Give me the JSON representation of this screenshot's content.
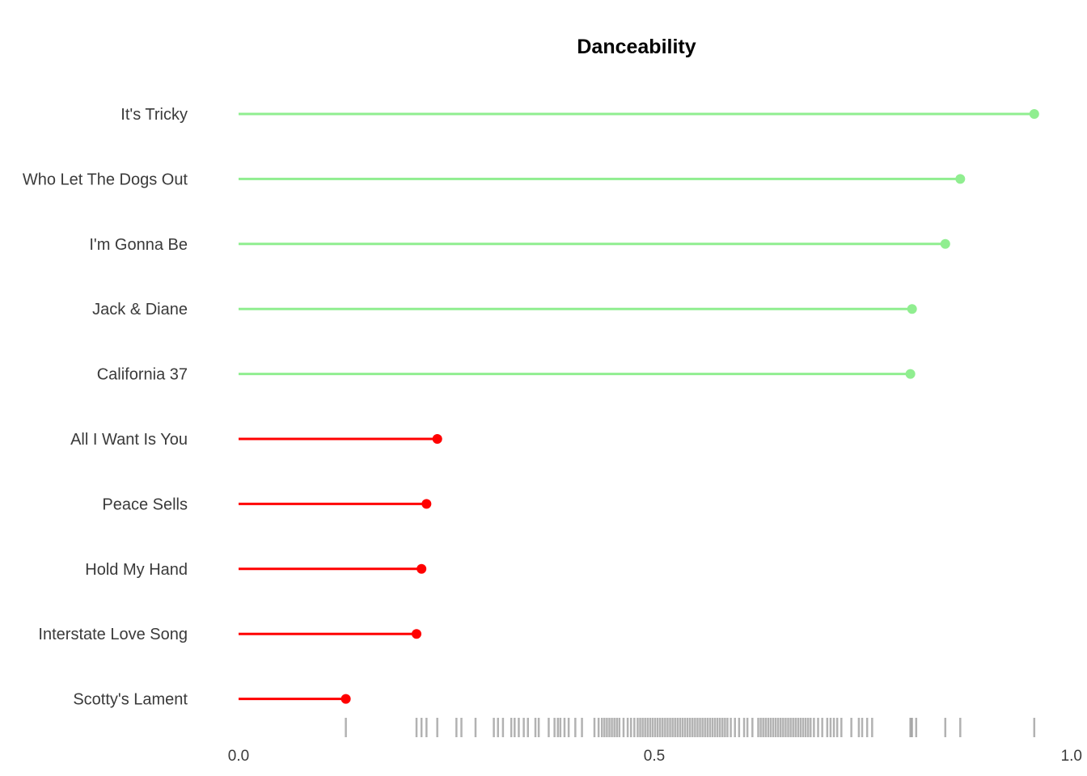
{
  "chart_data": {
    "type": "lollipop",
    "title": "Danceability",
    "xlabel": "",
    "ylabel": "",
    "xlim": [
      0.0,
      1.0
    ],
    "xticks": [
      0.0,
      0.5,
      1.0
    ],
    "xtick_labels": [
      "0.0",
      "0.5",
      "1.0"
    ],
    "grid": false,
    "colors": {
      "high": "#90EE90",
      "low": "#FF0000",
      "rug": "#000000"
    },
    "items": [
      {
        "label": "It's Tricky",
        "value": 0.957,
        "group": "high"
      },
      {
        "label": "Who Let The Dogs Out",
        "value": 0.868,
        "group": "high"
      },
      {
        "label": "I'm Gonna Be ",
        "value": 0.85,
        "group": "high"
      },
      {
        "label": "Jack & Diane",
        "value": 0.81,
        "group": "high"
      },
      {
        "label": "California 37",
        "value": 0.808,
        "group": "high"
      },
      {
        "label": "All I Want Is You",
        "value": 0.239,
        "group": "low"
      },
      {
        "label": "Peace Sells",
        "value": 0.226,
        "group": "low"
      },
      {
        "label": "Hold My Hand",
        "value": 0.22,
        "group": "low"
      },
      {
        "label": "Interstate Love Song",
        "value": 0.214,
        "group": "low"
      },
      {
        "label": "Scotty's Lament",
        "value": 0.129,
        "group": "low"
      }
    ],
    "rug_values": [
      0.129,
      0.214,
      0.22,
      0.226,
      0.239,
      0.262,
      0.268,
      0.285,
      0.307,
      0.312,
      0.318,
      0.328,
      0.332,
      0.337,
      0.343,
      0.348,
      0.357,
      0.361,
      0.373,
      0.38,
      0.384,
      0.387,
      0.392,
      0.397,
      0.405,
      0.413,
      0.428,
      0.433,
      0.437,
      0.44,
      0.443,
      0.446,
      0.449,
      0.452,
      0.455,
      0.458,
      0.463,
      0.468,
      0.472,
      0.476,
      0.48,
      0.483,
      0.486,
      0.489,
      0.492,
      0.495,
      0.498,
      0.501,
      0.504,
      0.507,
      0.51,
      0.513,
      0.516,
      0.519,
      0.522,
      0.525,
      0.528,
      0.531,
      0.534,
      0.537,
      0.54,
      0.543,
      0.546,
      0.549,
      0.552,
      0.555,
      0.558,
      0.561,
      0.564,
      0.567,
      0.57,
      0.573,
      0.576,
      0.579,
      0.582,
      0.585,
      0.588,
      0.592,
      0.597,
      0.602,
      0.608,
      0.612,
      0.618,
      0.625,
      0.628,
      0.631,
      0.634,
      0.637,
      0.64,
      0.643,
      0.646,
      0.649,
      0.652,
      0.655,
      0.658,
      0.661,
      0.664,
      0.667,
      0.67,
      0.673,
      0.676,
      0.679,
      0.682,
      0.685,
      0.688,
      0.692,
      0.697,
      0.702,
      0.708,
      0.712,
      0.716,
      0.72,
      0.725,
      0.737,
      0.746,
      0.75,
      0.756,
      0.762,
      0.808,
      0.81,
      0.815,
      0.85,
      0.868,
      0.957
    ]
  }
}
